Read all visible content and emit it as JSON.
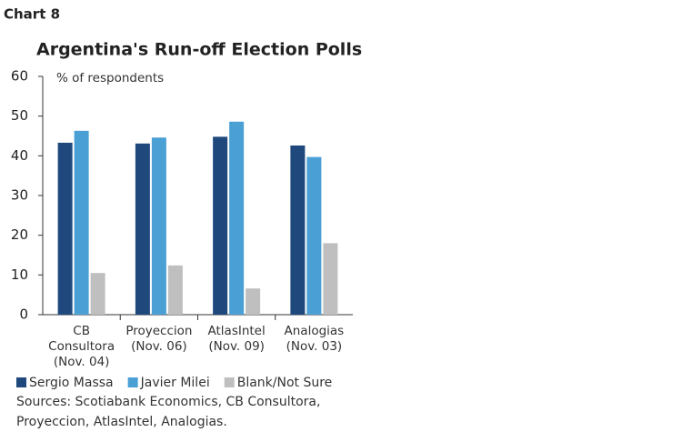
{
  "chart_label": "Chart 8",
  "chart_data": {
    "type": "bar",
    "title": "Argentina's Run-off Election Polls",
    "y_label": "% of respondents",
    "categories": [
      [
        "CB",
        "Consultora",
        "(Nov. 04)"
      ],
      [
        "Proyeccion",
        "(Nov. 06)"
      ],
      [
        "AtlasIntel",
        "(Nov. 09)"
      ],
      [
        "Analogias",
        "(Nov. 03)"
      ]
    ],
    "series": [
      {
        "name": "Sergio Massa",
        "color": "#1f497d",
        "values": [
          43.3,
          43.1,
          44.8,
          42.6
        ]
      },
      {
        "name": "Javier Milei",
        "color": "#4a9fd5",
        "values": [
          46.3,
          44.6,
          48.6,
          39.7
        ]
      },
      {
        "name": "Blank/Not Sure",
        "color": "#bfbfbf",
        "values": [
          10.5,
          12.4,
          6.6,
          18.0
        ]
      }
    ],
    "ylim": [
      0,
      60
    ],
    "yticks": [
      0,
      10,
      20,
      30,
      40,
      50,
      60
    ],
    "grid": false,
    "source": [
      "Sources: Scotiabank Economics, CB Consultora,",
      "Proyeccion, AtlasIntel, Analogias."
    ]
  }
}
